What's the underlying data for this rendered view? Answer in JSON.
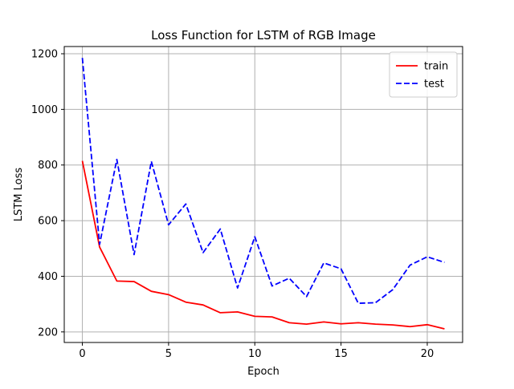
{
  "chart_data": {
    "type": "line",
    "title": "Loss Function for LSTM of RGB Image",
    "xlabel": "Epoch",
    "ylabel": "LSTM Loss",
    "xlim": [
      -1.05,
      22.05
    ],
    "ylim": [
      162,
      1226
    ],
    "xticks": [
      0,
      5,
      10,
      15,
      20
    ],
    "yticks": [
      200,
      400,
      600,
      800,
      1000,
      1200
    ],
    "grid": true,
    "legend_position": "top-right",
    "x": [
      0,
      1,
      2,
      3,
      4,
      5,
      6,
      7,
      8,
      9,
      10,
      11,
      12,
      13,
      14,
      15,
      16,
      17,
      18,
      19,
      20,
      21
    ],
    "series": [
      {
        "name": "train",
        "color": "#ff0000",
        "dash": "solid",
        "values": [
          815,
          505,
          383,
          381,
          346,
          334,
          307,
          297,
          269,
          272,
          256,
          254,
          233,
          228,
          236,
          229,
          233,
          228,
          225,
          219,
          226,
          211
        ]
      },
      {
        "name": "test",
        "color": "#0000ff",
        "dash": "dashed",
        "values": [
          1185,
          515,
          820,
          478,
          813,
          585,
          660,
          485,
          570,
          358,
          542,
          365,
          393,
          327,
          448,
          427,
          303,
          305,
          352,
          440,
          470,
          450
        ]
      }
    ]
  }
}
